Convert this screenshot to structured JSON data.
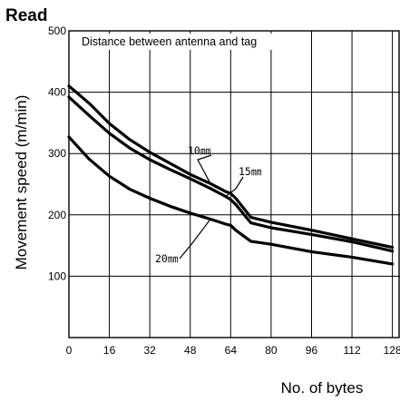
{
  "chart_data": {
    "type": "line",
    "title": "Read",
    "note": "Distance between antenna and tag",
    "xlabel": "No. of bytes",
    "ylabel": "Movement speed (m/min)",
    "xlim": [
      0,
      128
    ],
    "ylim": [
      0,
      500
    ],
    "xticks": [
      0,
      16,
      32,
      48,
      64,
      80,
      96,
      112,
      128
    ],
    "yticks": [
      100,
      200,
      300,
      400,
      500
    ],
    "grid": true,
    "series": [
      {
        "name": "10㎜",
        "x": [
          0,
          8,
          16,
          24,
          32,
          40,
          48,
          56,
          62,
          64,
          66,
          72,
          80,
          96,
          112,
          128
        ],
        "y": [
          410,
          382,
          349,
          323,
          302,
          284,
          266,
          251,
          238,
          235,
          227,
          196,
          188,
          175,
          161,
          147
        ]
      },
      {
        "name": "15㎜",
        "x": [
          0,
          8,
          16,
          24,
          32,
          40,
          48,
          56,
          62,
          64,
          66,
          72,
          80,
          96,
          112,
          128
        ],
        "y": [
          392,
          362,
          333,
          309,
          290,
          274,
          259,
          243,
          230,
          225,
          217,
          187,
          179,
          168,
          156,
          141
        ]
      },
      {
        "name": "20㎜",
        "x": [
          0,
          8,
          16,
          24,
          32,
          40,
          48,
          56,
          62,
          64,
          66,
          72,
          80,
          96,
          112,
          128
        ],
        "y": [
          327,
          291,
          263,
          242,
          227,
          214,
          203,
          193,
          185,
          183,
          175,
          157,
          152,
          140,
          131,
          120
        ]
      }
    ]
  }
}
